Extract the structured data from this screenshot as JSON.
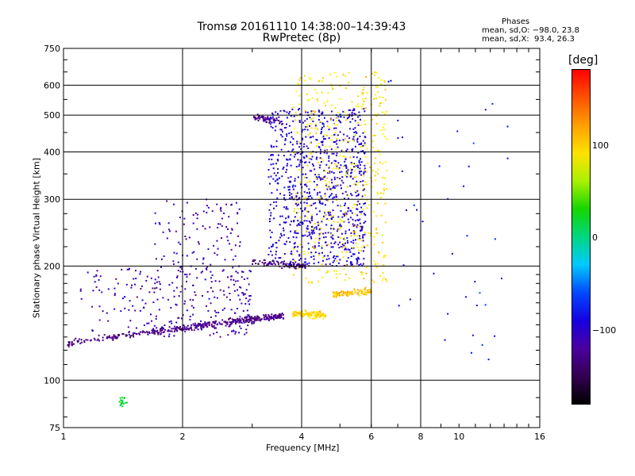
{
  "header": {
    "title_line1": "Tromsø 20161110 14:38:00–14:39:43",
    "title_line2": "RwPretec (8p)"
  },
  "phases_info": {
    "heading": "Phases",
    "line_o": "mean, sd,O: −98.0, 23.8",
    "line_x": "mean, sd,X:  93.4, 26.3"
  },
  "colorbar": {
    "unit": "[deg]",
    "ticks": [
      "100",
      "0",
      "−100"
    ],
    "tick_values": [
      100,
      0,
      -100
    ],
    "range": [
      -180,
      180
    ]
  },
  "chart_data": {
    "type": "scatter",
    "title": "Tromsø 20161110 14:38:00–14:39:43",
    "subtitle": "RwPretec (8p)",
    "xlabel": "Frequency [MHz]",
    "ylabel": "Stationary phase Virtual Height [km]",
    "x_scale": "log",
    "y_scale": "log",
    "xlim": [
      1,
      16
    ],
    "ylim": [
      75,
      750
    ],
    "x_ticks": [
      1,
      2,
      4,
      6,
      8,
      10,
      16
    ],
    "x_tick_labels": [
      "1",
      "2",
      "4",
      "6",
      "8",
      "10",
      "16"
    ],
    "y_ticks": [
      75,
      100,
      200,
      300,
      400,
      500,
      600,
      750
    ],
    "y_tick_labels": [
      "75",
      "100",
      "200",
      "300",
      "400",
      "500",
      "600",
      "750"
    ],
    "grid_x": [
      2,
      4,
      6,
      8
    ],
    "grid_y": [
      100,
      200,
      300,
      400,
      500,
      600
    ],
    "color_scale": "phase [deg], rainbow from black (-180) through blue, cyan, green, yellow to red (+180)",
    "clusters": [
      {
        "name": "lower trace",
        "x_range": [
          1.02,
          3.6
        ],
        "y_start": 125,
        "y_end": 148,
        "phase_mean": -130,
        "count": 420
      },
      {
        "name": "low scatter",
        "x_range": [
          1.1,
          3.0
        ],
        "y_range": [
          130,
          200
        ],
        "phase_mean": -110,
        "count": 260
      },
      {
        "name": "F layer rise",
        "x_range": [
          1.7,
          2.8
        ],
        "y_range": [
          180,
          300
        ],
        "phase_mean": -110,
        "count": 120
      },
      {
        "name": "F trace 200km",
        "x_range": [
          3.0,
          4.1
        ],
        "y_start": 205,
        "y_end": 200,
        "phase_mean": -140,
        "count": 90
      },
      {
        "name": "F upper 490km",
        "x_range": [
          3.0,
          3.6
        ],
        "y_start": 495,
        "y_end": 480,
        "phase_mean": -130,
        "count": 60
      },
      {
        "name": "F cloud blue",
        "x_range": [
          3.3,
          5.8
        ],
        "y_range": [
          200,
          520
        ],
        "phase_mean": -95,
        "count": 900
      },
      {
        "name": "F cloud yellow",
        "x_range": [
          3.8,
          6.6
        ],
        "y_range": [
          180,
          650
        ],
        "phase_mean": 90,
        "count": 450
      },
      {
        "name": "X trace 150km",
        "x_range": [
          3.8,
          4.6
        ],
        "y_start": 150,
        "y_end": 148,
        "phase_mean": 95,
        "count": 120
      },
      {
        "name": "X trace 170km",
        "x_range": [
          4.8,
          6.0
        ],
        "y_start": 168,
        "y_end": 172,
        "phase_mean": 105,
        "count": 100
      },
      {
        "name": "green patch",
        "x_range": [
          1.38,
          1.45
        ],
        "y_range": [
          85,
          90
        ],
        "phase_mean": 20,
        "count": 20
      },
      {
        "name": "sparse high freq",
        "x_range": [
          6.0,
          13.5
        ],
        "y_range": [
          110,
          650
        ],
        "phase_mean": -80,
        "count": 40
      }
    ]
  }
}
